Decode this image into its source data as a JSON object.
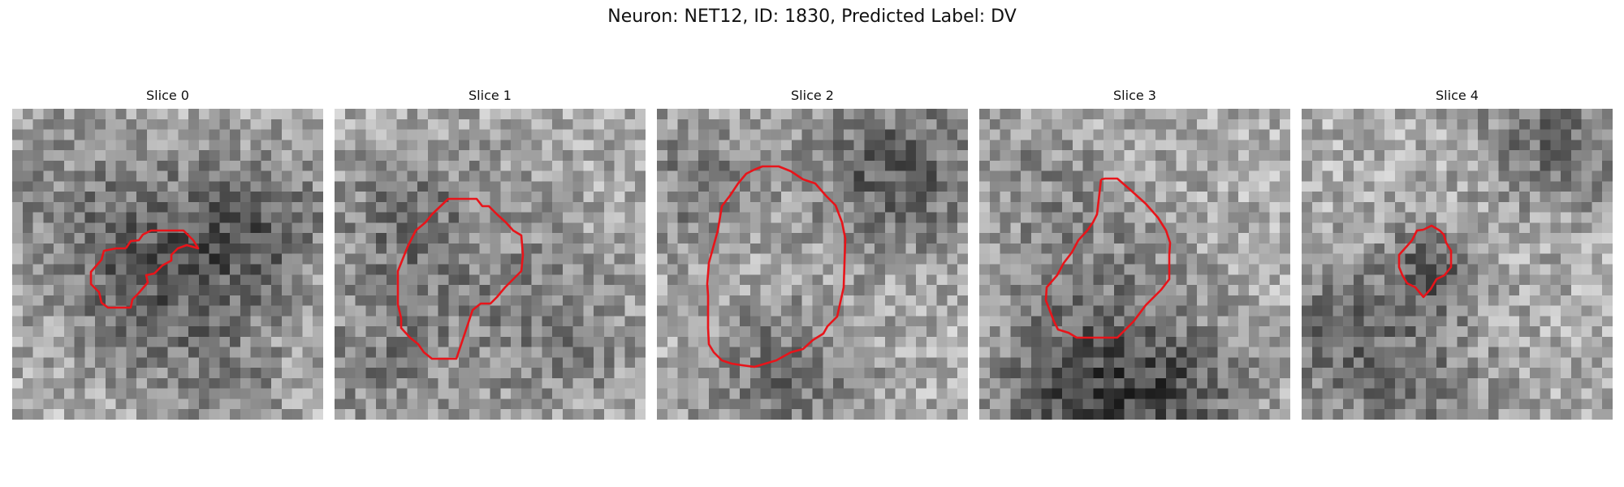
{
  "figure": {
    "title": "Neuron: NET12, ID: 1830, Predicted Label: DV"
  },
  "panels": [
    {
      "title": "Slice 0"
    },
    {
      "title": "Slice 1"
    },
    {
      "title": "Slice 2"
    },
    {
      "title": "Slice 3"
    },
    {
      "title": "Slice 4"
    }
  ],
  "colors": {
    "contour": "#e8141a",
    "background": "#ffffff"
  }
}
